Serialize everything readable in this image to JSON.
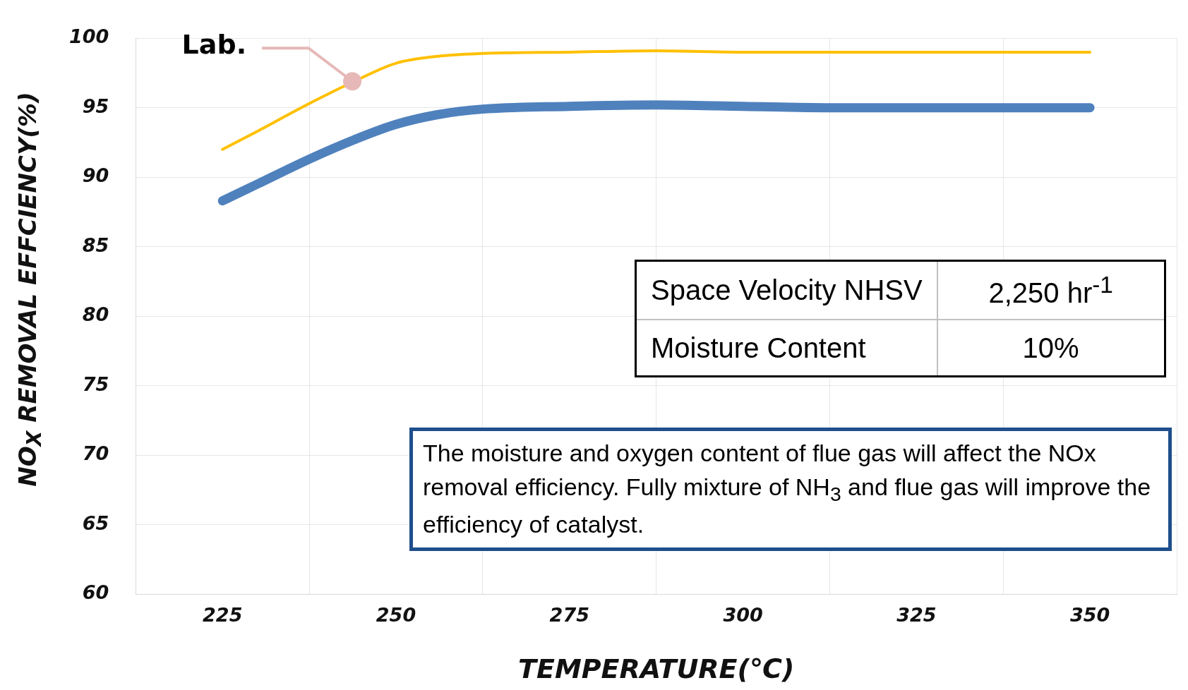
{
  "chart_data": {
    "type": "line",
    "xlabel": "TEMPERATURE(℃)",
    "ylabel": "NO$_{X}$ REMOVAL EFFCIENCY(%)",
    "x": [
      225,
      230,
      237.5,
      244,
      250,
      256,
      262.5,
      275,
      287.5,
      300,
      312.5,
      325,
      337.5,
      350
    ],
    "series": [
      {
        "color": "#ffc000",
        "values": [
          92,
          93.3,
          95.3,
          96.9,
          98.2,
          98.7,
          98.9,
          99,
          99.1,
          99,
          99,
          99,
          99,
          99
        ]
      },
      {
        "color": "#4f81bd",
        "values": [
          88.3,
          89.5,
          91.3,
          92.7,
          93.8,
          94.5,
          94.9,
          95.1,
          95.2,
          95.1,
          95,
          95,
          95,
          95
        ]
      }
    ],
    "xlim": [
      212.5,
      362.5
    ],
    "xticks": [
      {
        "value": 212.5,
        "label": null
      },
      225,
      {
        "value": 237.5,
        "label": null
      },
      250,
      {
        "value": 262.5,
        "label": null
      },
      275,
      {
        "value": 287.5,
        "label": null
      },
      300,
      {
        "value": 312.5,
        "label": null
      },
      325,
      {
        "value": 337.5,
        "label": null
      },
      350,
      {
        "value": 362.5,
        "label": null
      }
    ],
    "ylim": [
      60,
      100
    ],
    "yticks": [
      60,
      65,
      70,
      75,
      80,
      85,
      90,
      95,
      100
    ],
    "grid": true,
    "marker": "none",
    "line_style": "solid",
    "annotations": [
      {
        "text": "Lab.",
        "x": 243.7,
        "y": 96.9
      },
      "Space Velocity NHSV",
      "2,250 hr$^{-1}$",
      "Moisture Content",
      "10%",
      "The moisture and oxygen content of flue gas will affect the NOx removal efficiency. Fully mixture of NH$_{3}$ and flue gas will improve the efficiency of catalyst."
    ]
  }
}
